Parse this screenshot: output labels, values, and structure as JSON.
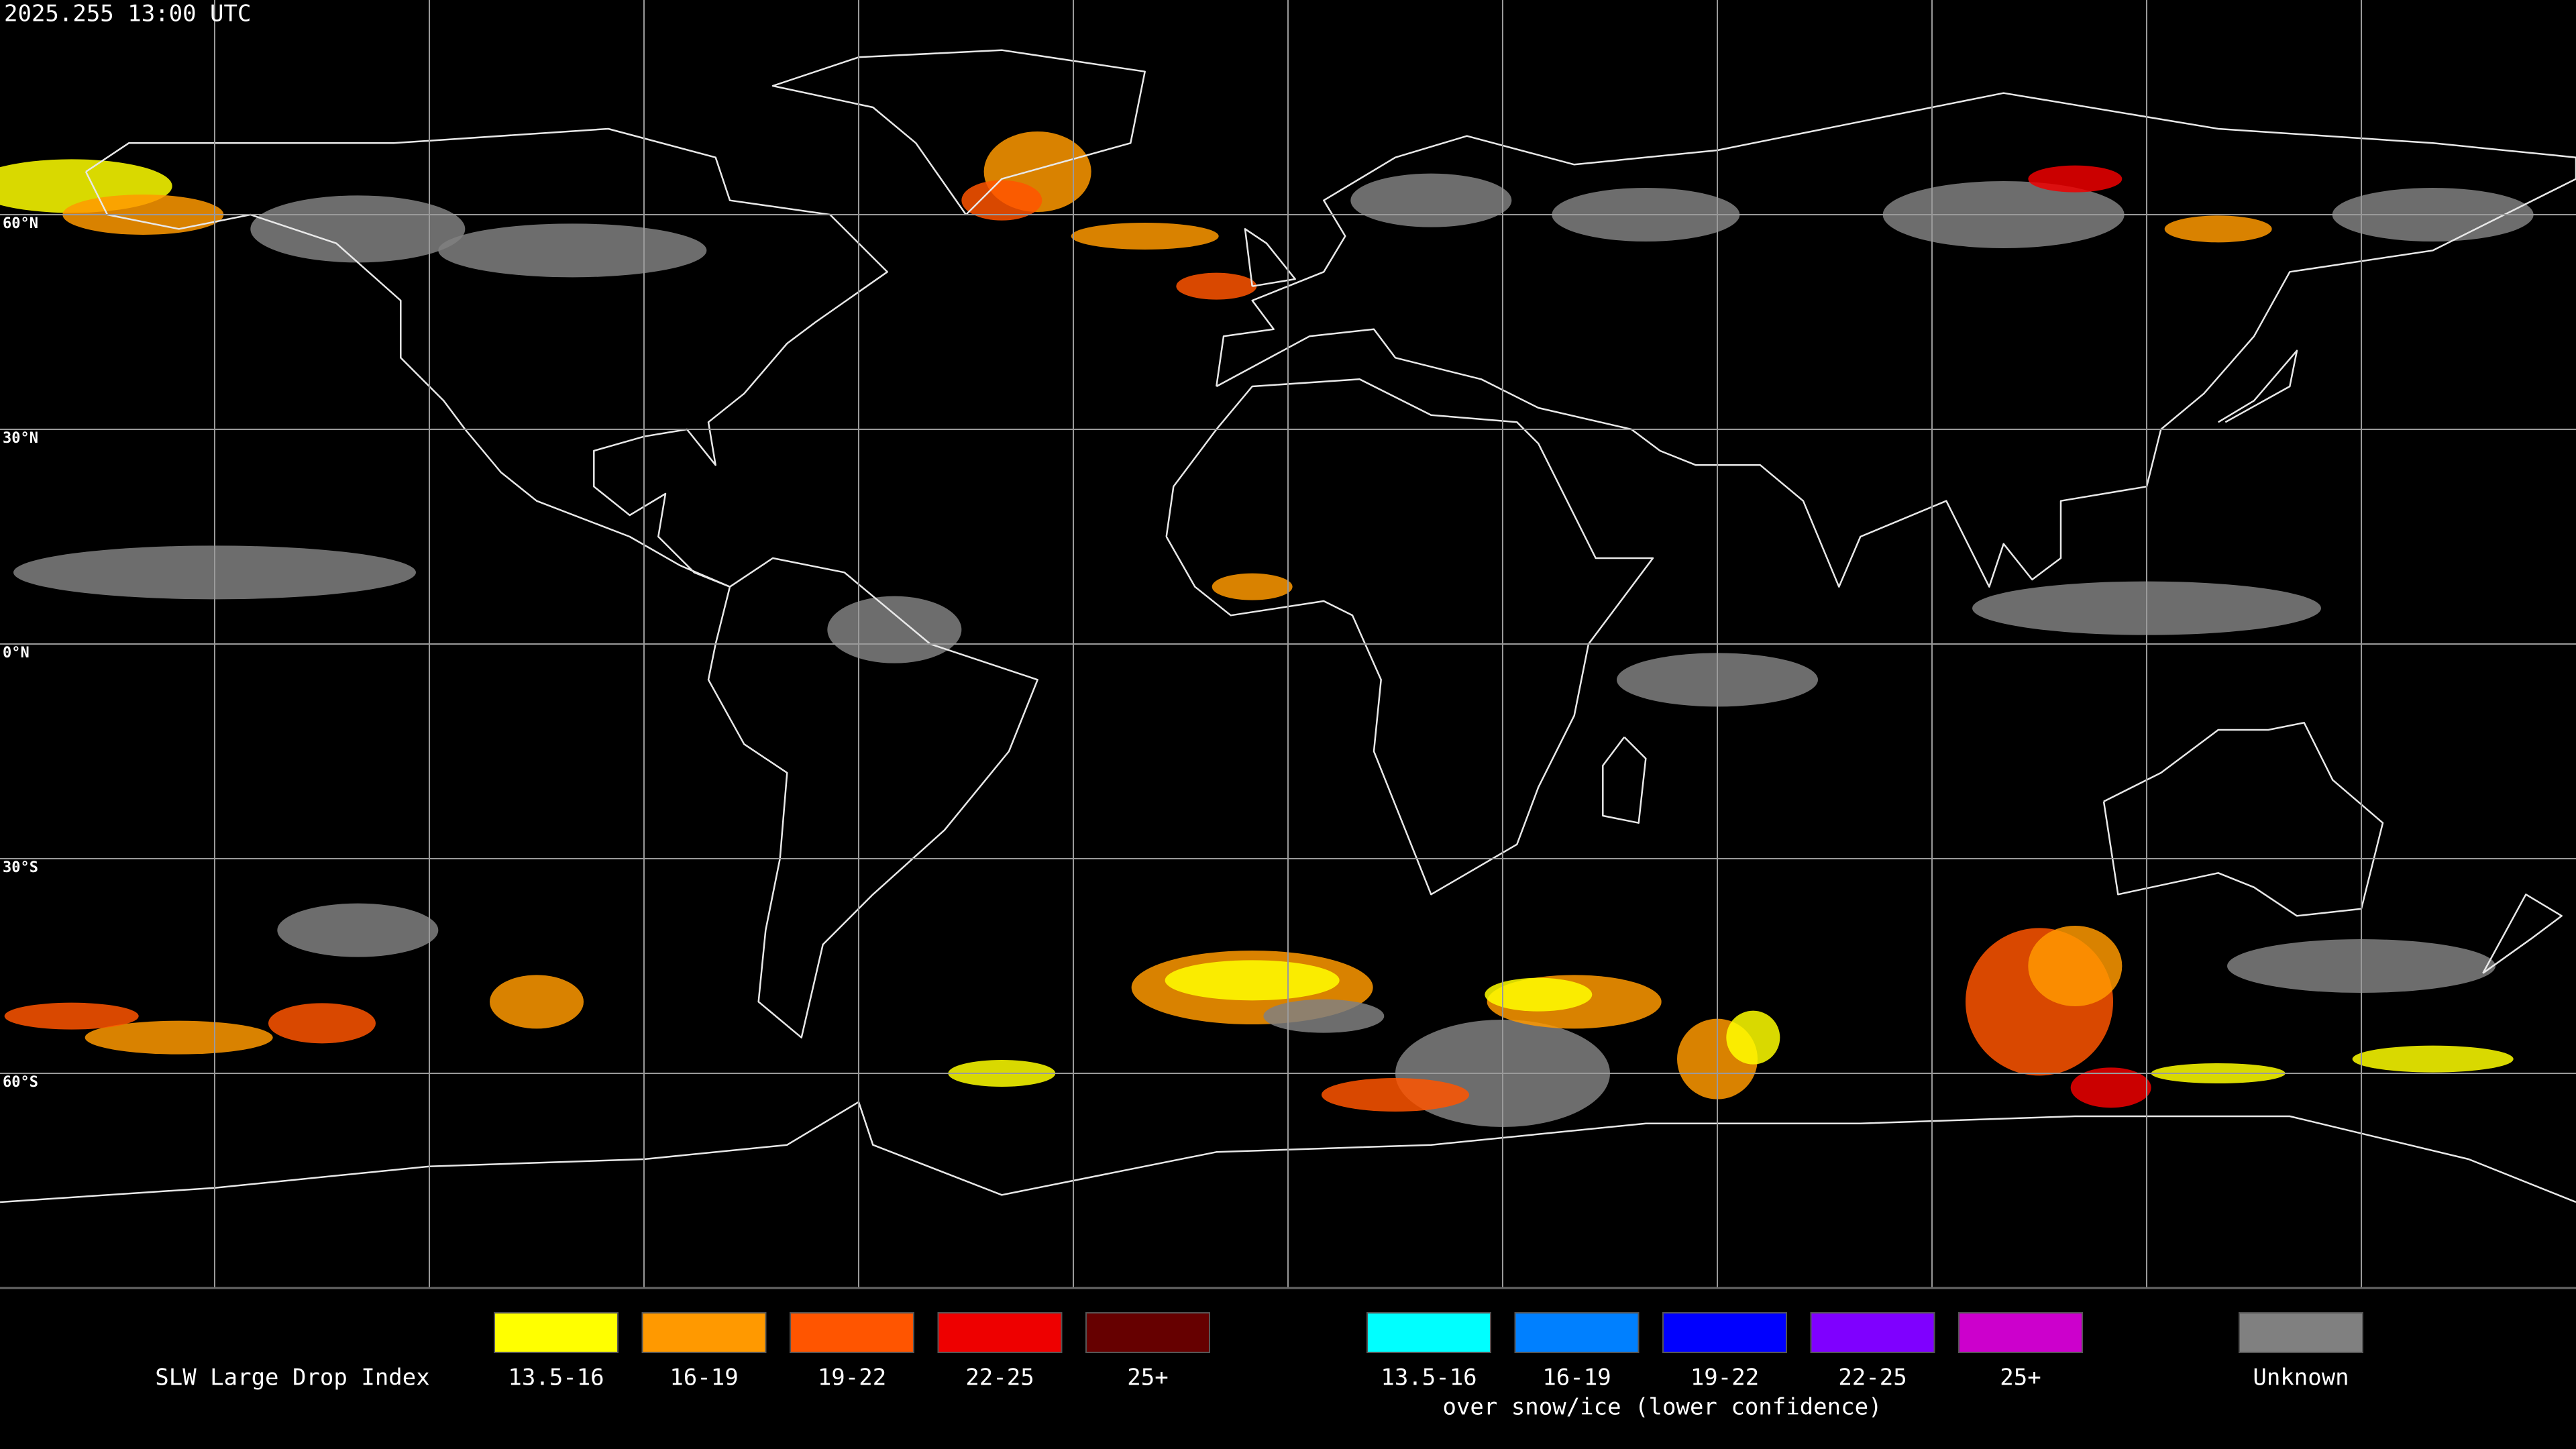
{
  "header": {
    "timestamp": "2025.255 13:00 UTC"
  },
  "map": {
    "latitude_labels": [
      "60°N",
      "30°N",
      "0°N",
      "30°S",
      "60°S"
    ]
  },
  "legend": {
    "title": "SLW Large Drop Index",
    "groups": [
      {
        "items": [
          {
            "label": "13.5-16",
            "color": "#ffff00"
          },
          {
            "label": "16-19",
            "color": "#ff9900"
          },
          {
            "label": "19-22",
            "color": "#ff5500"
          },
          {
            "label": "22-25",
            "color": "#ee0000"
          },
          {
            "label": "25+",
            "color": "#660000"
          }
        ]
      },
      {
        "items": [
          {
            "label": "13.5-16",
            "color": "#00ffff"
          },
          {
            "label": "16-19",
            "color": "#0080ff"
          },
          {
            "label": "19-22",
            "color": "#0000ff"
          },
          {
            "label": "22-25",
            "color": "#7f00ff"
          },
          {
            "label": "25+",
            "color": "#cc00cc"
          }
        ],
        "caption": "over snow/ice (lower confidence)"
      }
    ],
    "unknown": {
      "label": "Unknown",
      "color": "#808080"
    }
  }
}
